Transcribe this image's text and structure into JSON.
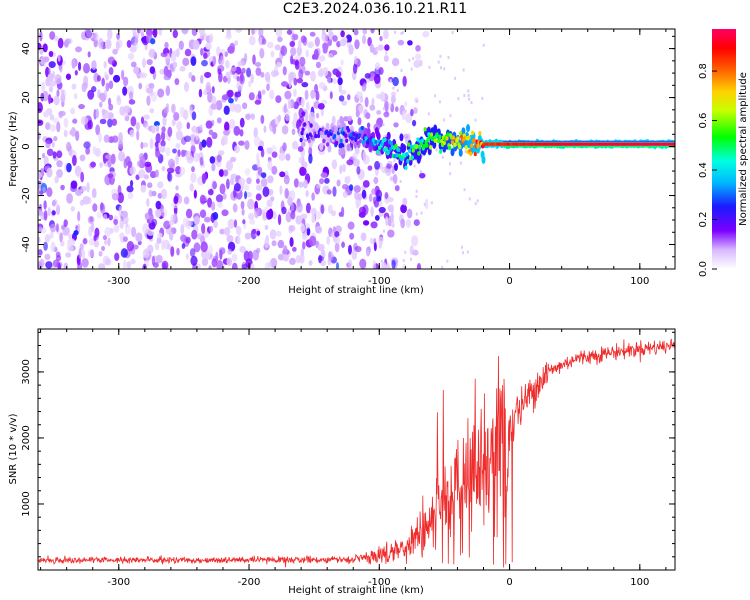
{
  "chart_data": [
    {
      "type": "heatmap",
      "title": "C2E3.2024.036.10.21.R11",
      "xlabel": "Height of straight line (km)",
      "ylabel": "Frequency (Hz)",
      "xlim": [
        -362,
        127
      ],
      "ylim": [
        -50,
        48
      ],
      "xticks": [
        -300,
        -200,
        -100,
        0,
        100
      ],
      "yticks": [
        -40,
        -20,
        0,
        20,
        40
      ],
      "colorbar": {
        "label": "Normalized spectral amplitude",
        "range": [
          0,
          0.97
        ],
        "ticks": [
          "0.0",
          "0.2",
          "0.4",
          "0.6",
          "0.8"
        ],
        "colormap": "rainbow: white-violet-blue-cyan-green-yellow-orange-red-pink"
      },
      "features": {
        "noise_region_km": [
          -362,
          -100
        ],
        "noise_amplitude_approx": 0.1,
        "carrier_ridge": [
          {
            "x": -160,
            "freq": 6,
            "amp": 0.12
          },
          {
            "x": -115,
            "freq": 4,
            "amp": 0.25
          },
          {
            "x": -95,
            "freq": 0,
            "amp": 0.4
          },
          {
            "x": -80,
            "freq": -4,
            "amp": 0.5
          },
          {
            "x": -60,
            "freq": 4,
            "amp": 0.55
          },
          {
            "x": -45,
            "freq": 2,
            "amp": 0.65
          },
          {
            "x": -25,
            "freq": 1,
            "amp": 0.85
          },
          {
            "x": 0,
            "freq": 1,
            "amp": 0.9
          },
          {
            "x": 50,
            "freq": 1,
            "amp": 0.95
          },
          {
            "x": 127,
            "freq": 1,
            "amp": 0.97
          }
        ]
      }
    },
    {
      "type": "line",
      "xlabel": "Height of straight line (km)",
      "ylabel": "SNR (10 * v/v)",
      "xlim": [
        -362,
        127
      ],
      "ylim": [
        0,
        3650
      ],
      "xticks": [
        -300,
        -200,
        -100,
        0,
        100
      ],
      "yticks": [
        1000,
        2000,
        3000
      ],
      "series": [
        {
          "name": "SNR",
          "color": "#ef2b2b",
          "x": [
            -362,
            -300,
            -200,
            -120,
            -100,
            -80,
            -60,
            -45,
            -35,
            -25,
            -15,
            -5,
            0,
            10,
            20,
            30,
            50,
            80,
            100,
            127
          ],
          "y": [
            150,
            150,
            150,
            160,
            220,
            350,
            700,
            1100,
            1400,
            1500,
            1800,
            2000,
            2200,
            2500,
            2800,
            3000,
            3200,
            3300,
            3350,
            3400
          ]
        }
      ]
    }
  ],
  "colors": {
    "signal": "#ef2b2b",
    "axis": "#000000",
    "background": "#ffffff"
  }
}
